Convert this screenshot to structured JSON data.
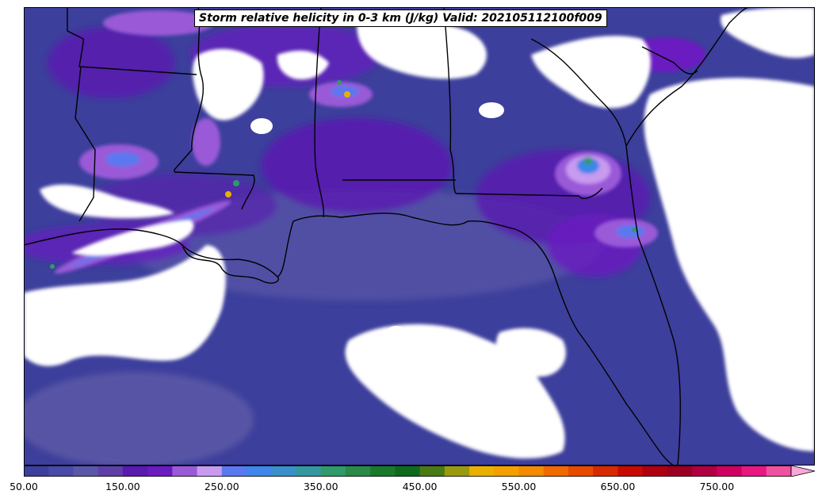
{
  "map": {
    "title": "Storm relative helicity in 0-3 km (J/kg) Valid: 202105112100f009",
    "colors": {
      "no_data": "#ffffff",
      "borders": "#000000",
      "base_fill": "#3d3f9c"
    }
  },
  "colorbar": {
    "min": 50,
    "max": 825,
    "step": 25,
    "extend": "max",
    "extend_color": "#f7a8d8",
    "tick_values": [
      50,
      150,
      250,
      350,
      450,
      550,
      650,
      750
    ],
    "tick_labels": [
      "50.00",
      "150.00",
      "250.00",
      "350.00",
      "450.00",
      "550.00",
      "650.00",
      "750.00"
    ],
    "colors": [
      "#3d3f9c",
      "#4a4aa8",
      "#5b57a8",
      "#5e3fa8",
      "#5a1ab0",
      "#6a1cc0",
      "#9a5ad8",
      "#c89af0",
      "#5a78f0",
      "#3e86ea",
      "#3a90c8",
      "#34999e",
      "#2f9a6a",
      "#2a8a48",
      "#197a2a",
      "#0f6a1e",
      "#4a7a14",
      "#9a9a10",
      "#e8b000",
      "#f4a000",
      "#f48a00",
      "#f06a00",
      "#e84a00",
      "#d82a00",
      "#c80a00",
      "#b00010",
      "#9a0020",
      "#b00040",
      "#d00060",
      "#e81880",
      "#f050a0"
    ]
  }
}
